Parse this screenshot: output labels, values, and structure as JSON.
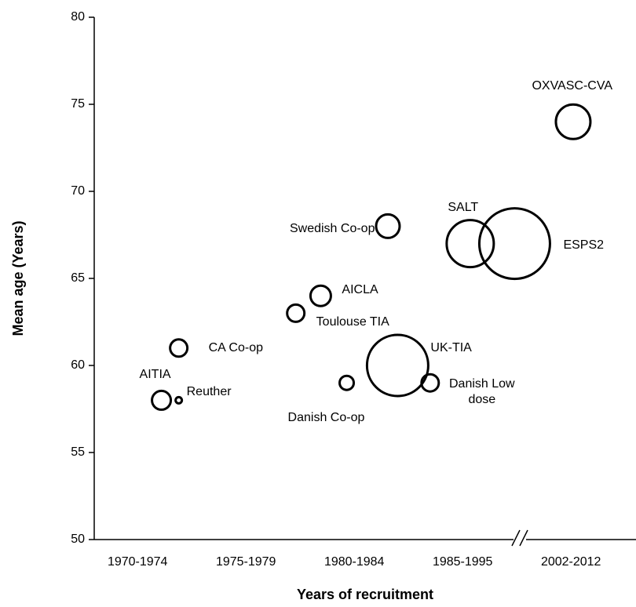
{
  "chart_data": {
    "type": "bubble",
    "x_label": "Years of recruitment",
    "y_label": "Mean age (Years)",
    "color": "#000000",
    "xlim": [
      -0.4,
      4.6
    ],
    "xticks": [
      {
        "value": 0,
        "label": "1970-1974"
      },
      {
        "value": 1,
        "label": "1975-1979"
      },
      {
        "value": 2,
        "label": "1980-1984"
      },
      {
        "value": 3,
        "label": "1985-1995"
      },
      {
        "value": 4,
        "label": "2002-2012"
      }
    ],
    "ylim": [
      50,
      80
    ],
    "yticks": [
      50,
      55,
      60,
      65,
      70,
      75,
      80
    ],
    "labels": [
      "AITIA",
      "Reuther",
      "CA Co-op",
      "Toulouse TIA",
      "AICLA",
      "Danish Co-op",
      "Swedish Co-op",
      "UK-TIA",
      "Danish Low dose",
      "SALT",
      "ESPS2",
      "OXVASC-CVA"
    ],
    "x": [
      0.22,
      0.38,
      0.38,
      1.46,
      1.69,
      1.93,
      2.31,
      2.4,
      2.7,
      3.07,
      3.48,
      4.02
    ],
    "values": [
      58,
      58,
      61,
      63,
      64,
      59,
      68,
      60,
      59,
      67,
      67,
      74
    ],
    "sizes": [
      12,
      4,
      11,
      11,
      13,
      9,
      15,
      39,
      11,
      30,
      45,
      22
    ]
  }
}
